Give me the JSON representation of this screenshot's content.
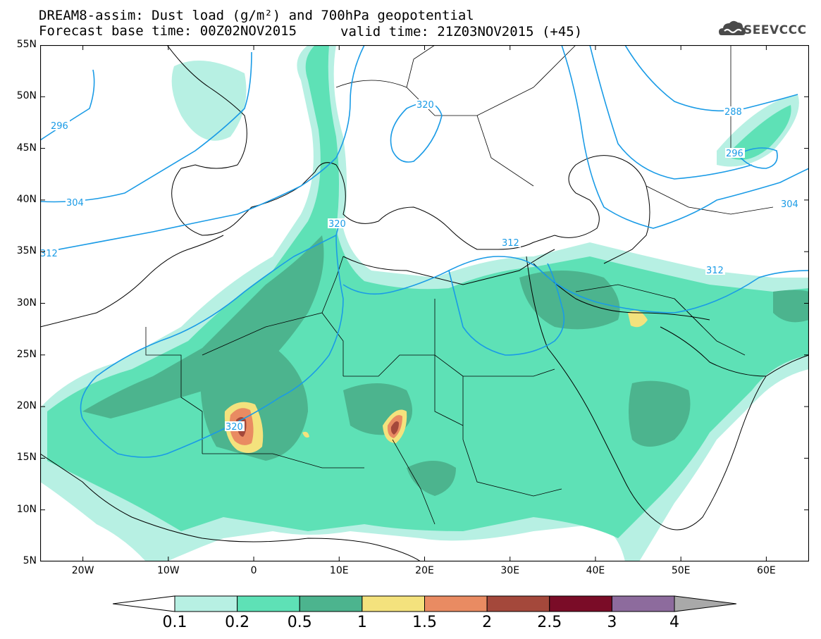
{
  "title_line1": "DREAM8-assim: Dust load (g/m²) and 700hPa geopotential",
  "title_line2_base": "Forecast base time: 00Z02NOV2015",
  "title_line2_valid": "valid time: 21Z03NOV2015 (+45)",
  "logo_text": "SEEVCCC",
  "lat_labels": [
    {
      "lat": 55,
      "label": "55N"
    },
    {
      "lat": 50,
      "label": "50N"
    },
    {
      "lat": 45,
      "label": "45N"
    },
    {
      "lat": 40,
      "label": "40N"
    },
    {
      "lat": 35,
      "label": "35N"
    },
    {
      "lat": 30,
      "label": "30N"
    },
    {
      "lat": 25,
      "label": "25N"
    },
    {
      "lat": 20,
      "label": "20N"
    },
    {
      "lat": 15,
      "label": "15N"
    },
    {
      "lat": 10,
      "label": "10N"
    },
    {
      "lat": 5,
      "label": "5N"
    }
  ],
  "lon_labels": [
    {
      "lon": -20,
      "label": "20W"
    },
    {
      "lon": -10,
      "label": "10W"
    },
    {
      "lon": 0,
      "label": "0"
    },
    {
      "lon": 10,
      "label": "10E"
    },
    {
      "lon": 20,
      "label": "20E"
    },
    {
      "lon": 30,
      "label": "30E"
    },
    {
      "lon": 40,
      "label": "40E"
    },
    {
      "lon": 50,
      "label": "50E"
    },
    {
      "lon": 60,
      "label": "60E"
    }
  ],
  "contour_labels": [
    "296",
    "304",
    "312",
    "320",
    "320",
    "312",
    "312",
    "304",
    "288",
    "296",
    "320"
  ],
  "colorbar": {
    "levels": [
      "0.1",
      "0.2",
      "0.5",
      "1",
      "1.5",
      "2",
      "2.5",
      "3",
      "4"
    ],
    "colors": [
      "#ffffff",
      "#b7f0e3",
      "#5ee1b6",
      "#4cb48e",
      "#f4e27d",
      "#e98b62",
      "#a4483b",
      "#7a0c27",
      "#8d6b9d",
      "#a9a9a9"
    ]
  },
  "colors": {
    "contour": "#1a9be6",
    "dust1": "#b7f0e3",
    "dust2": "#5ee1b6",
    "dust3": "#4cb48e",
    "dust4": "#f4e27d",
    "dust5": "#e98b62",
    "dust6": "#a4483b"
  }
}
